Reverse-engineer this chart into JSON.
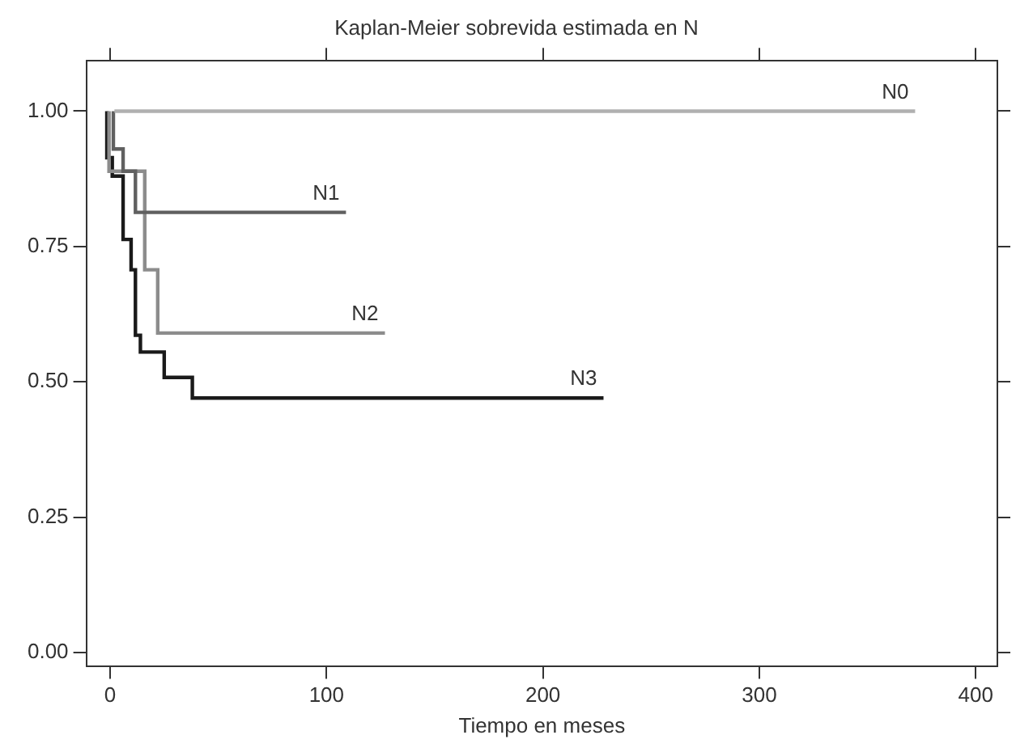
{
  "chart_data": {
    "type": "step",
    "title": "Kaplan-Meier sobrevida estimada en N",
    "xlabel": "Tiempo en meses",
    "xlim": [
      -11,
      410
    ],
    "xticks": [
      0,
      100,
      200,
      300,
      400
    ],
    "ylim": [
      -0.025,
      1.093
    ],
    "yticks": [
      {
        "value": 0,
        "label": "0.00"
      },
      {
        "value": 0.25,
        "label": "0.25"
      },
      {
        "value": 0.5,
        "label": "0.50"
      },
      {
        "value": 0.75,
        "label": "0.75"
      },
      {
        "value": 1,
        "label": "1.00"
      }
    ],
    "grid": false,
    "legend": false,
    "series": [
      {
        "name": "N0",
        "color": "#b0b0b0",
        "x": [
          2,
          372
        ],
        "values": [
          1,
          1
        ]
      },
      {
        "name": "N1",
        "color": "#606060",
        "x": [
          1.5,
          1.5,
          6,
          11.7,
          109
        ],
        "values": [
          1,
          0.93,
          0.889,
          0.813,
          0.813
        ]
      },
      {
        "name": "N2",
        "color": "#8c8c8c",
        "x": [
          -0.5,
          -0.5,
          16,
          22,
          127
        ],
        "values": [
          1,
          0.889,
          0.707,
          0.59,
          0.59
        ]
      },
      {
        "name": "N3",
        "color": "#1a1a1a",
        "x": [
          -1.5,
          -1.5,
          1,
          6,
          9.7,
          11.7,
          14,
          25,
          38,
          228
        ],
        "values": [
          1,
          0.914,
          0.88,
          0.763,
          0.707,
          0.586,
          0.555,
          0.508,
          0.47,
          0.47
        ]
      }
    ]
  }
}
